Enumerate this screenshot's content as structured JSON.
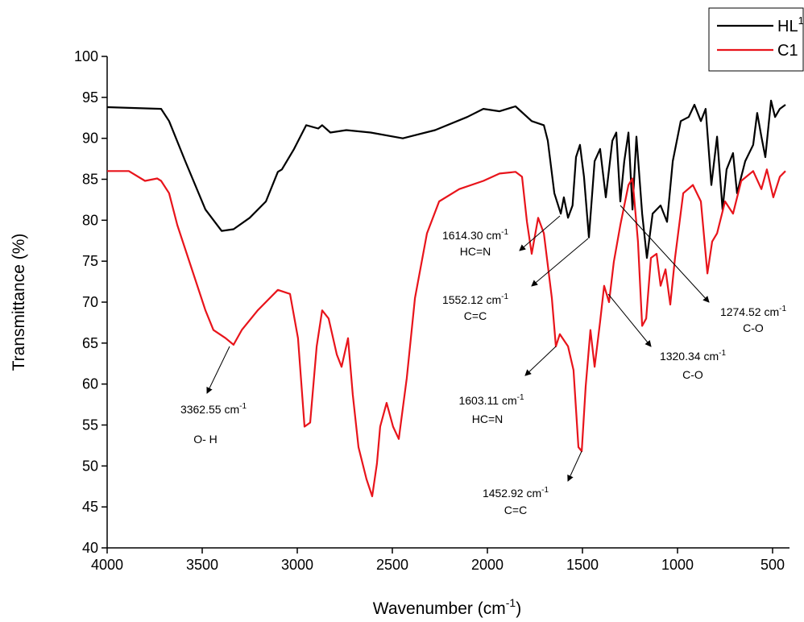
{
  "chart_data": {
    "type": "line",
    "x_label": {
      "text": "Wavenumber (cm",
      "sup": "-1",
      "after": ")"
    },
    "y_label": "Transmittance (%)",
    "xlim": [
      4000,
      400
    ],
    "ylim": [
      40,
      100
    ],
    "xticks": [
      4000,
      3500,
      3000,
      2500,
      2000,
      1500,
      1000,
      500
    ],
    "yticks": [
      40,
      45,
      50,
      55,
      60,
      65,
      70,
      75,
      80,
      85,
      90,
      95,
      100
    ],
    "legend": "top-right",
    "series": [
      {
        "name": {
          "text": "HL",
          "sup": "1"
        },
        "color": "#000000",
        "x": [
          4000,
          3716,
          3674,
          3589,
          3483,
          3398,
          3335,
          3250,
          3165,
          3102,
          3081,
          3017,
          2953,
          2890,
          2869,
          2826,
          2742,
          2614,
          2445,
          2275,
          2106,
          2021,
          1936,
          1852,
          1767,
          1703,
          1682,
          1648,
          1614,
          1598,
          1576,
          1552,
          1534,
          1513,
          1492,
          1466,
          1436,
          1407,
          1377,
          1343,
          1322,
          1301,
          1280,
          1258,
          1237,
          1216,
          1186,
          1161,
          1131,
          1089,
          1055,
          1025,
          983,
          941,
          911,
          877,
          852,
          822,
          792,
          763,
          742,
          708,
          687,
          644,
          602,
          581,
          559,
          538,
          508,
          487,
          462,
          432
        ],
        "values": [
          93.8,
          93.6,
          92.1,
          87.2,
          81.3,
          78.7,
          78.9,
          80.3,
          82.3,
          85.9,
          86.2,
          88.7,
          91.6,
          91.2,
          91.6,
          90.7,
          91.0,
          90.7,
          90.0,
          91.0,
          92.6,
          93.6,
          93.3,
          93.9,
          92.1,
          91.6,
          89.7,
          83.3,
          80.8,
          82.8,
          80.3,
          81.8,
          87.7,
          89.2,
          85.3,
          77.9,
          87.2,
          88.7,
          82.8,
          89.7,
          90.7,
          82.3,
          87.2,
          90.7,
          81.3,
          90.2,
          80.8,
          75.4,
          80.8,
          81.8,
          79.8,
          87.2,
          92.1,
          92.6,
          94.1,
          92.1,
          93.6,
          84.3,
          90.2,
          81.3,
          86.2,
          88.2,
          83.3,
          87.2,
          89.2,
          93.1,
          90.2,
          87.7,
          94.6,
          92.6,
          93.6,
          94.1
        ]
      },
      {
        "name": {
          "text": "C1"
        },
        "color": "#e8141b",
        "x": [
          4000,
          3886,
          3801,
          3737,
          3716,
          3674,
          3631,
          3547,
          3483,
          3441,
          3377,
          3335,
          3292,
          3208,
          3102,
          3038,
          2996,
          2962,
          2932,
          2898,
          2869,
          2835,
          2792,
          2767,
          2733,
          2708,
          2678,
          2636,
          2606,
          2581,
          2564,
          2530,
          2496,
          2466,
          2424,
          2381,
          2318,
          2254,
          2148,
          2021,
          1936,
          1852,
          1818,
          1792,
          1767,
          1733,
          1703,
          1661,
          1640,
          1619,
          1576,
          1547,
          1521,
          1504,
          1483,
          1458,
          1436,
          1407,
          1386,
          1360,
          1335,
          1301,
          1258,
          1237,
          1208,
          1186,
          1165,
          1140,
          1110,
          1089,
          1063,
          1038,
          1013,
          970,
          919,
          877,
          843,
          818,
          792,
          750,
          708,
          665,
          602,
          559,
          530,
          496,
          462,
          432
        ],
        "values": [
          86.0,
          86.0,
          84.8,
          85.1,
          84.8,
          83.3,
          79.4,
          73.5,
          69.0,
          66.6,
          65.6,
          64.8,
          66.6,
          69.0,
          71.5,
          71.0,
          65.6,
          54.8,
          55.3,
          64.6,
          69.0,
          68.0,
          63.6,
          62.1,
          65.6,
          58.7,
          52.3,
          48.4,
          46.3,
          50.3,
          54.8,
          57.7,
          54.8,
          53.3,
          60.7,
          70.5,
          78.4,
          82.3,
          83.8,
          84.8,
          85.7,
          85.9,
          85.3,
          79.8,
          75.9,
          80.3,
          78.4,
          70.5,
          64.6,
          66.1,
          64.6,
          61.7,
          52.3,
          51.8,
          59.7,
          66.6,
          62.1,
          67.6,
          72.0,
          70.0,
          74.9,
          79.4,
          84.3,
          85.1,
          77.4,
          67.1,
          68.0,
          75.4,
          75.9,
          72.0,
          74.0,
          69.7,
          75.4,
          83.3,
          84.3,
          82.3,
          73.5,
          77.4,
          78.4,
          82.3,
          80.8,
          84.8,
          86.0,
          83.8,
          86.2,
          82.8,
          85.3,
          86.0
        ]
      }
    ],
    "annotations": [
      {
        "text": "1614.30 cm",
        "sup": "-1",
        "line2": "HC=N"
      },
      {
        "text": "1552.12 cm",
        "sup": "-1",
        "line2": "C=C"
      },
      {
        "text": "1274.52 cm",
        "sup": "-1",
        "line2": "C-O"
      },
      {
        "text": "3362.55 cm",
        "sup": "-1",
        "line2": "O- H"
      },
      {
        "text": "1603.11 cm",
        "sup": "-1",
        "line2": "HC=N"
      },
      {
        "text": "1320.34 cm",
        "sup": "-1",
        "line2": "C-O"
      },
      {
        "text": "1452.92 cm",
        "sup": "-1",
        "line2": "C=C"
      }
    ]
  }
}
